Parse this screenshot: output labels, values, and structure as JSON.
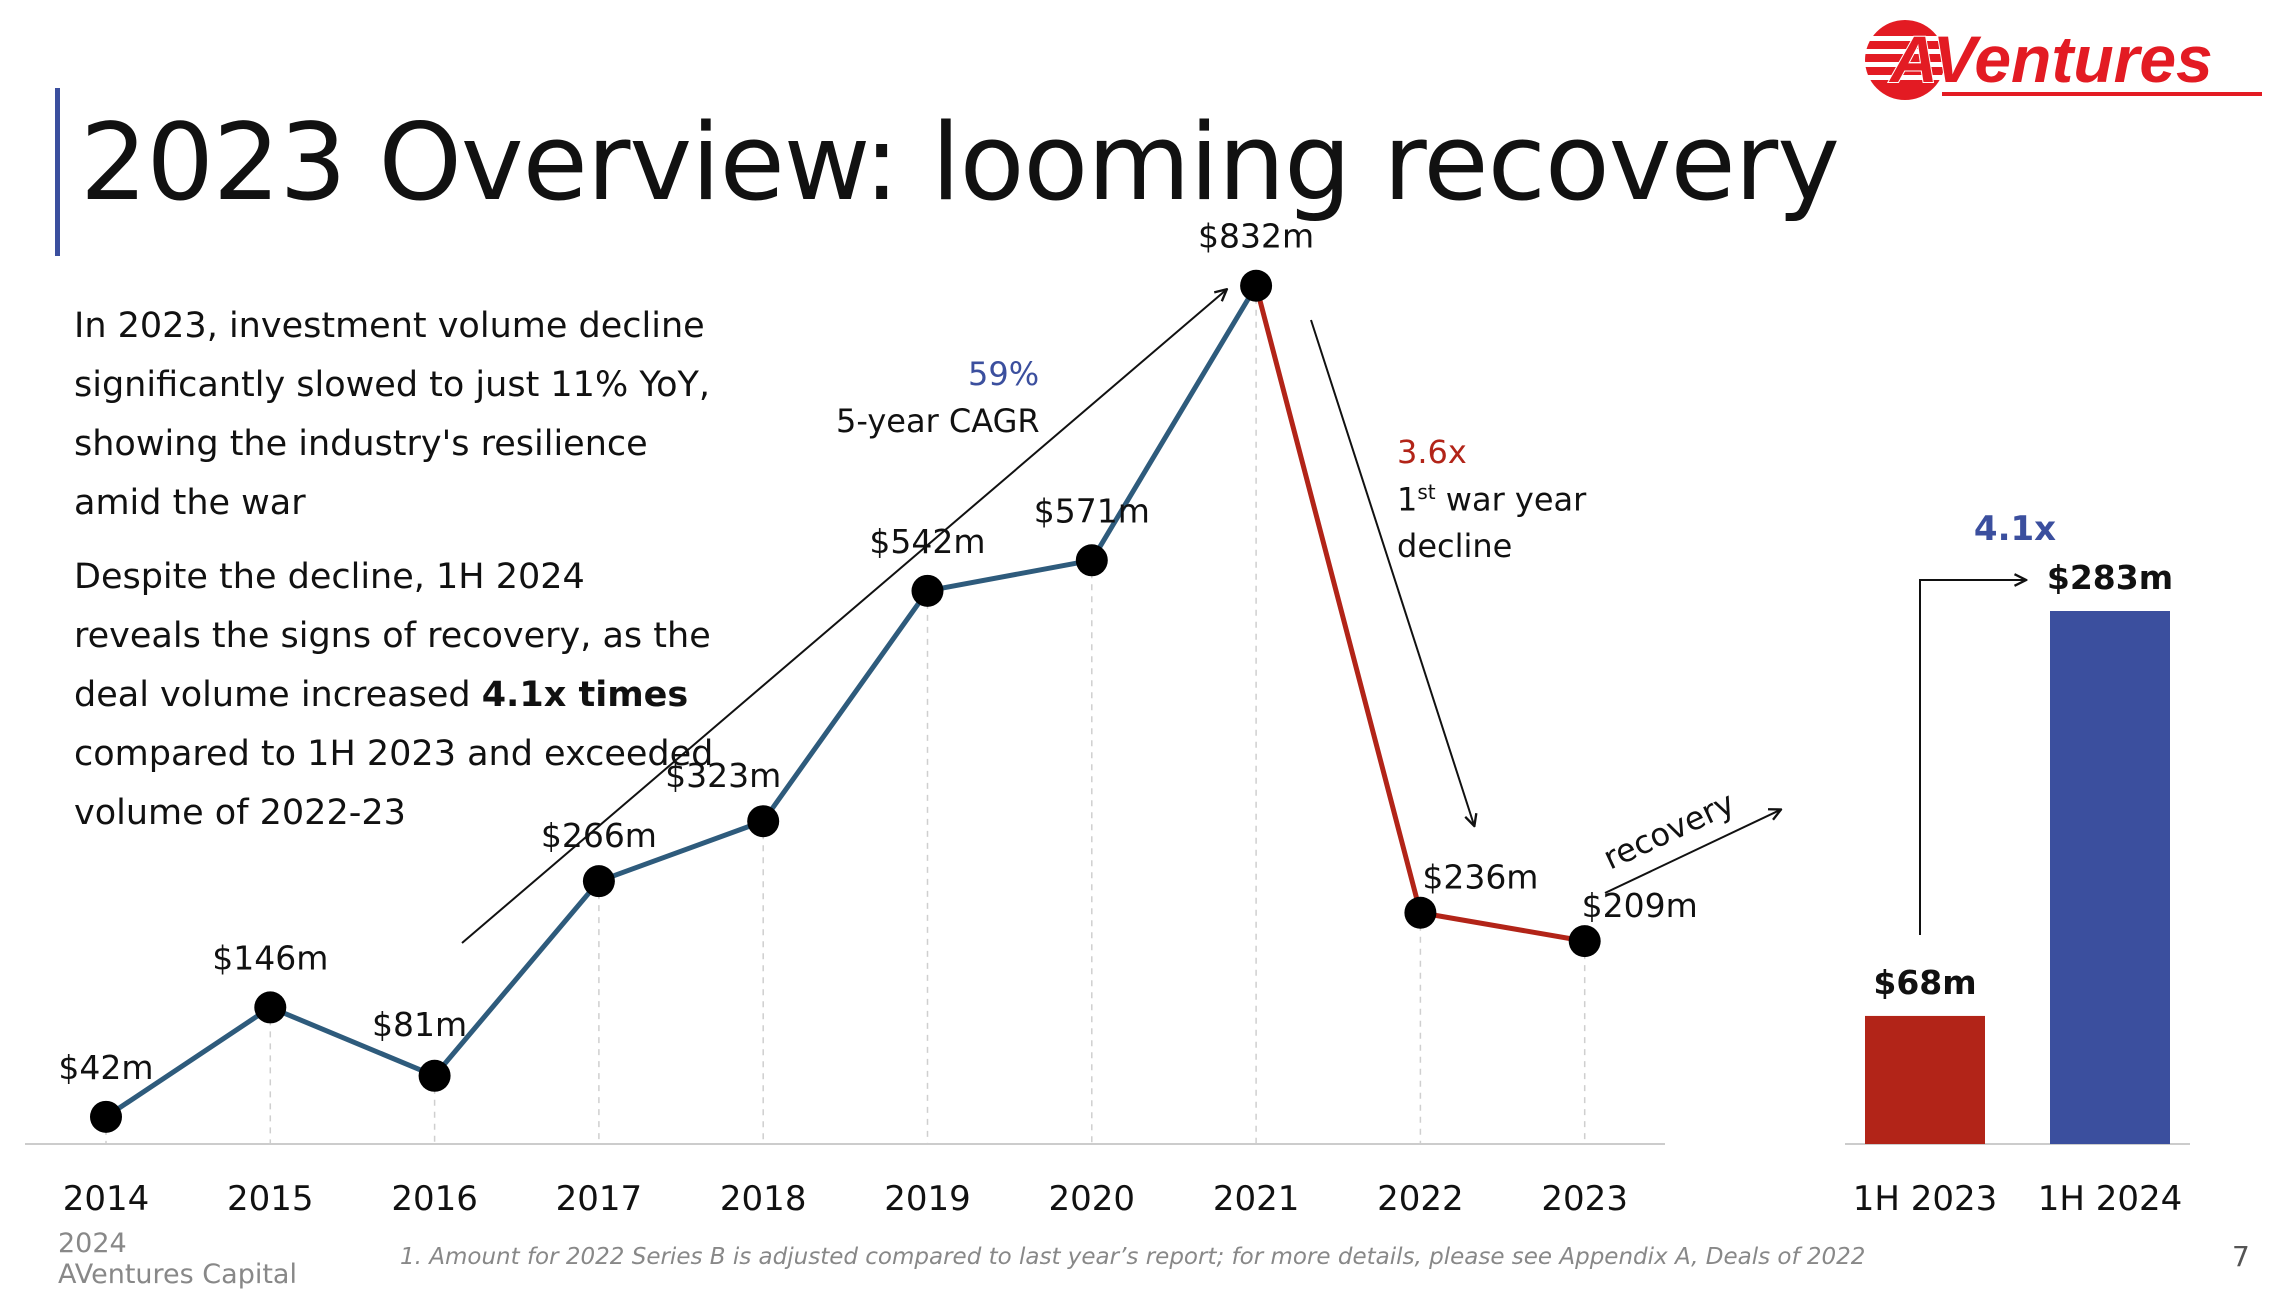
{
  "title": "2023 Overview: looming recovery",
  "logo": {
    "text": "AVentures",
    "accent": "#e31b23"
  },
  "paragraphs": {
    "p1": "In 2023, investment volume decline significantly slowed to just 11% YoY, showing the industry's resilience amid the war",
    "p2_before": "Despite the decline, 1H 2024 reveals the signs of recovery, as the deal volume increased ",
    "p2_bold": "4.1x times",
    "p2_after": " compared to 1H 2023 and exceeded volume of 2022-23"
  },
  "annotations": {
    "cagr_percent": "59%",
    "cagr_label": "5-year CAGR",
    "decline_factor": "3.6x",
    "decline_label_num": "1",
    "decline_label_sup": "st",
    "decline_label_rest": " war year",
    "decline_label_2": "decline",
    "recovery": "recovery",
    "growth_factor": "4.1x"
  },
  "footer": {
    "year": "2024",
    "company": "AVentures Capital",
    "footnote": "1. Amount for 2022 Series B is adjusted compared to last year’s report; for more details, please see Appendix A, Deals of 2022",
    "page_number": "7"
  },
  "colors": {
    "blue_line": "#2e5b7c",
    "red_line": "#b22418",
    "bar_red": "#b22418",
    "bar_blue": "#3b4f9e",
    "title_bar": "#3b4f9e"
  },
  "chart_data": [
    {
      "type": "line",
      "categories": [
        "2014",
        "2015",
        "2016",
        "2017",
        "2018",
        "2019",
        "2020",
        "2021",
        "2022",
        "2023"
      ],
      "values": [
        42,
        146,
        81,
        266,
        323,
        542,
        571,
        832,
        236,
        209
      ],
      "labels": [
        "$42m",
        "$146m",
        "$81m",
        "$266m",
        "$323m",
        "$542m",
        "$571m",
        "$832m",
        "$236m",
        "$209m"
      ],
      "unit": "$m",
      "ylim": [
        0,
        900
      ],
      "grid": false,
      "segment_colors": {
        "2014-2021": "#2e5b7c",
        "2021-2023": "#b22418"
      }
    },
    {
      "type": "bar",
      "categories": [
        "1H 2023",
        "1H 2024"
      ],
      "values": [
        68,
        283
      ],
      "labels": [
        "$68m",
        "$283m"
      ],
      "unit": "$m",
      "colors": [
        "#b22418",
        "#3b4f9e"
      ],
      "ylim": [
        0,
        300
      ]
    }
  ]
}
